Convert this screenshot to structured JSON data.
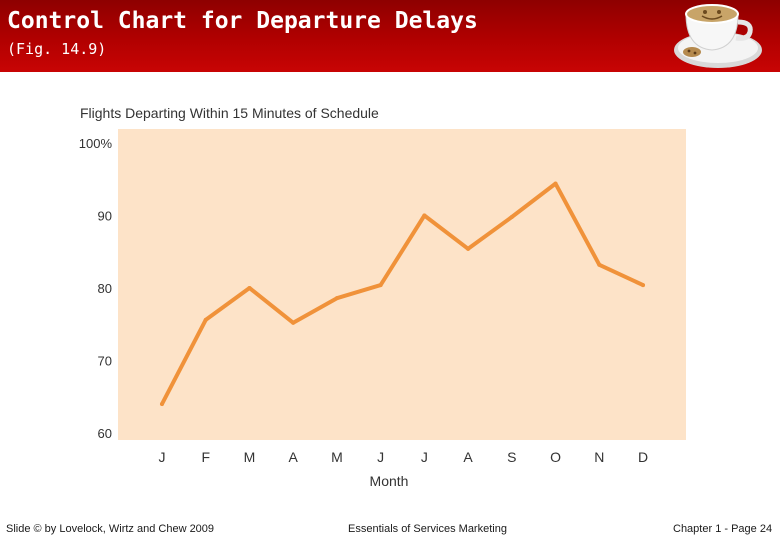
{
  "slide": {
    "title": "Control Chart for Departure Delays",
    "subtitle": "(Fig. 14.9)",
    "footer_left": "Slide © by Lovelock, Wirtz and Chew 2009",
    "footer_center": "Essentials of Services Marketing",
    "footer_right": "Chapter 1 - Page 24"
  },
  "colors": {
    "header": "#b10000",
    "plot_background": "#fde3c8",
    "line": "#f0923a"
  },
  "chart_data": {
    "type": "line",
    "title": "Flights Departing Within 15 Minutes of Schedule",
    "xlabel": "Month",
    "ylabel": "",
    "categories": [
      "J",
      "F",
      "M",
      "A",
      "M",
      "J",
      "J",
      "A",
      "S",
      "O",
      "N",
      "D"
    ],
    "values": [
      64,
      75.6,
      80,
      75.2,
      78.6,
      80.4,
      90,
      85.4,
      89.8,
      94.4,
      83.2,
      80.4
    ],
    "ylim": [
      60,
      100
    ],
    "yticks": [
      60,
      70,
      80,
      90,
      100
    ],
    "ytick_labels": [
      "60",
      "70",
      "80",
      "90",
      "100%"
    ],
    "grid": false
  }
}
